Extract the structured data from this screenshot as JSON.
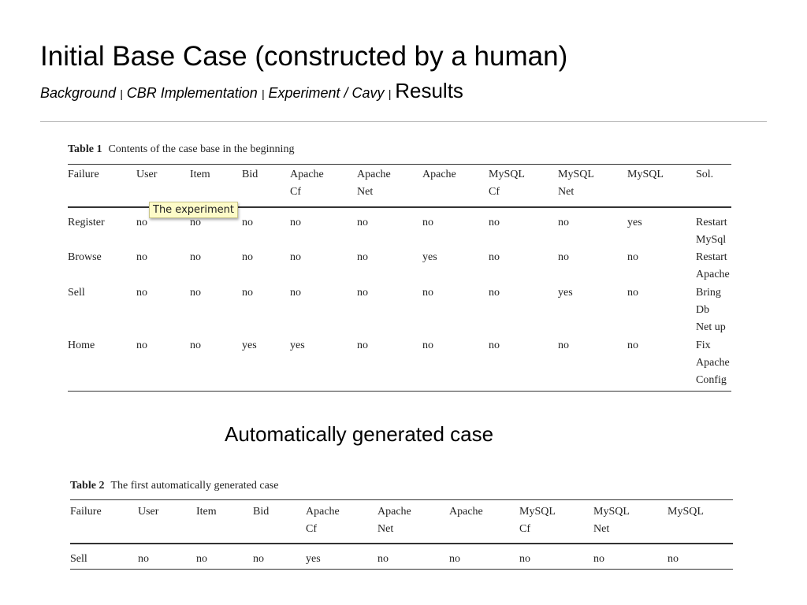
{
  "slide": {
    "title": "Initial Base Case (constructed by a human)",
    "nav": {
      "background": "Background",
      "sep1": "|",
      "cbr": "CBR Implementation",
      "sep2": "|",
      "experiment": "Experiment / Cavy",
      "sep3": "|",
      "results": "Results"
    },
    "subheading": "Automatically generated case",
    "tooltip": "The experiment"
  },
  "table1": {
    "caption_label": "Table 1",
    "caption_text": "Contents of the case base in the beginning",
    "headers": [
      [
        "Failure"
      ],
      [
        "User"
      ],
      [
        "Item"
      ],
      [
        "Bid"
      ],
      [
        "Apache",
        "Cf"
      ],
      [
        "Apache",
        "Net"
      ],
      [
        "Apache"
      ],
      [
        "MySQL",
        "Cf"
      ],
      [
        "MySQL",
        "Net"
      ],
      [
        "MySQL"
      ],
      [
        "Sol."
      ]
    ],
    "rows": [
      [
        [
          "Register"
        ],
        [
          "no"
        ],
        [
          "no"
        ],
        [
          "no"
        ],
        [
          "no"
        ],
        [
          "no"
        ],
        [
          "no"
        ],
        [
          "no"
        ],
        [
          "no"
        ],
        [
          "yes"
        ],
        [
          "Restart",
          "MySql"
        ]
      ],
      [
        [
          "Browse"
        ],
        [
          "no"
        ],
        [
          "no"
        ],
        [
          "no"
        ],
        [
          "no"
        ],
        [
          "no"
        ],
        [
          "yes"
        ],
        [
          "no"
        ],
        [
          "no"
        ],
        [
          "no"
        ],
        [
          "Restart",
          "Apache"
        ]
      ],
      [
        [
          "Sell"
        ],
        [
          "no"
        ],
        [
          "no"
        ],
        [
          "no"
        ],
        [
          "no"
        ],
        [
          "no"
        ],
        [
          "no"
        ],
        [
          "no"
        ],
        [
          "yes"
        ],
        [
          "no"
        ],
        [
          "Bring",
          "Db",
          "Net up"
        ]
      ],
      [
        [
          "Home"
        ],
        [
          "no"
        ],
        [
          "no"
        ],
        [
          "yes"
        ],
        [
          "yes"
        ],
        [
          "no"
        ],
        [
          "no"
        ],
        [
          "no"
        ],
        [
          "no"
        ],
        [
          "no"
        ],
        [
          "Fix",
          "Apache",
          "Config"
        ]
      ]
    ]
  },
  "table2": {
    "caption_label": "Table 2",
    "caption_text": "The first automatically generated case",
    "headers": [
      [
        "Failure"
      ],
      [
        "User"
      ],
      [
        "Item"
      ],
      [
        "Bid"
      ],
      [
        "Apache",
        "Cf"
      ],
      [
        "Apache",
        "Net"
      ],
      [
        "Apache"
      ],
      [
        "MySQL",
        "Cf"
      ],
      [
        "MySQL",
        "Net"
      ],
      [
        "MySQL"
      ]
    ],
    "rows": [
      [
        [
          "Sell"
        ],
        [
          "no"
        ],
        [
          "no"
        ],
        [
          "no"
        ],
        [
          "yes"
        ],
        [
          "no"
        ],
        [
          "no"
        ],
        [
          "no"
        ],
        [
          "no"
        ],
        [
          "no"
        ]
      ]
    ]
  }
}
